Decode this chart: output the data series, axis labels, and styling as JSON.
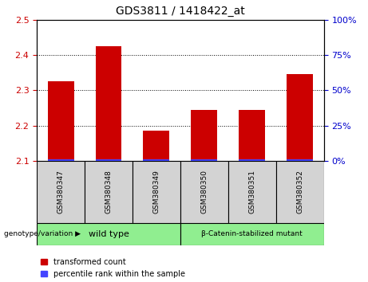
{
  "title": "GDS3811 / 1418422_at",
  "samples": [
    "GSM380347",
    "GSM380348",
    "GSM380349",
    "GSM380350",
    "GSM380351",
    "GSM380352"
  ],
  "red_values": [
    2.325,
    2.425,
    2.185,
    2.245,
    2.245,
    2.345
  ],
  "blue_values": [
    1.0,
    1.0,
    1.0,
    1.0,
    1.0,
    1.0
  ],
  "ylim_left": [
    2.1,
    2.5
  ],
  "ylim_right": [
    0,
    100
  ],
  "yticks_left": [
    2.1,
    2.2,
    2.3,
    2.4,
    2.5
  ],
  "yticks_right": [
    0,
    25,
    50,
    75,
    100
  ],
  "group_colors": [
    "#90EE90",
    "#90EE90"
  ],
  "red_bar_color": "#CC0000",
  "blue_bar_color": "#4444FF",
  "background_color": "#ffffff",
  "plot_bg_color": "#ffffff",
  "tick_label_bg": "#d3d3d3",
  "left_tick_color": "#CC0000",
  "right_tick_color": "#0000CC",
  "legend_red_label": "transformed count",
  "legend_blue_label": "percentile rank within the sample",
  "genotype_label": "genotype/variation",
  "group1_label": "wild type",
  "group2_label": "β-Catenin-stabilized mutant",
  "group1_range": [
    0,
    2
  ],
  "group2_range": [
    3,
    5
  ]
}
